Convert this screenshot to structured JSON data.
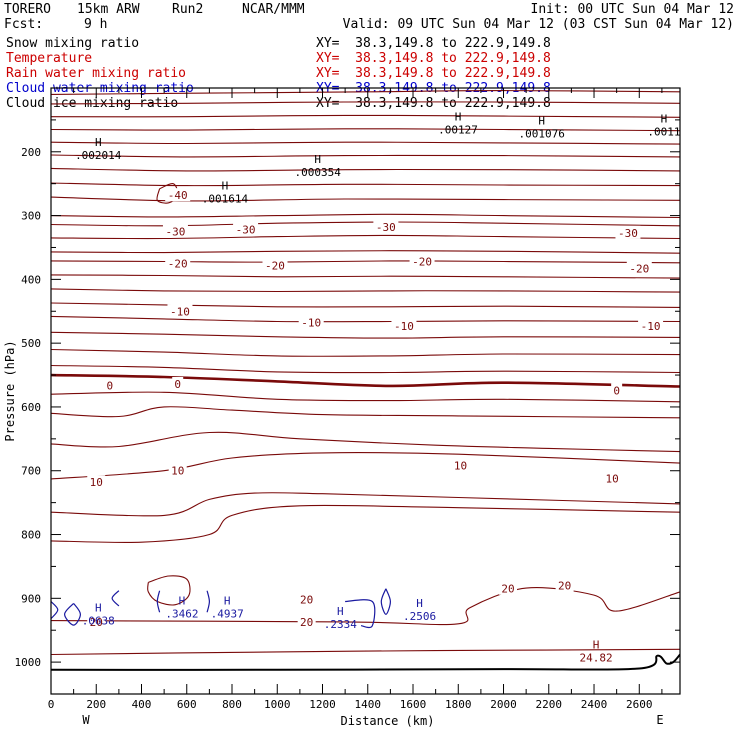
{
  "header": {
    "model": "TORERO",
    "resolution": "15km ARW",
    "run": "Run2",
    "org": "NCAR/MMM",
    "init": "Init: 00 UTC Sun 04 Mar 12",
    "fcst_label": "Fcst:",
    "fcst_value": "9 h",
    "valid": "Valid: 09 UTC Sun 04 Mar 12 (03 CST Sun 04 Mar 12)"
  },
  "fields": [
    {
      "name": "Snow mixing ratio",
      "xy": "XY=  38.3,149.8 to 222.9,149.8",
      "color": "#000000"
    },
    {
      "name": "Temperature",
      "xy": "XY=  38.3,149.8 to 222.9,149.8",
      "color": "#cc0000"
    },
    {
      "name": "Rain water mixing ratio",
      "xy": "XY=  38.3,149.8 to 222.9,149.8",
      "color": "#cc0000"
    },
    {
      "name": "Cloud water mixing ratio",
      "xy": "XY=  38.3,149.8 to 222.9,149.8",
      "color": "#0000cc"
    },
    {
      "name": "Cloud ice mixing ratio",
      "xy": "XY=  38.3,149.8 to 222.9,149.8",
      "color": "#000000"
    }
  ],
  "chart_data": {
    "type": "contour",
    "xlabel": "Distance (km)",
    "ylabel": "Pressure (hPa)",
    "xlim": [
      0,
      2780
    ],
    "ylim": [
      1050,
      100
    ],
    "x_ticks": [
      0,
      200,
      400,
      600,
      800,
      1000,
      1200,
      1400,
      1600,
      1800,
      2000,
      2200,
      2400,
      2600
    ],
    "y_ticks": [
      200,
      300,
      400,
      500,
      600,
      700,
      800,
      900,
      1000
    ],
    "x_end_labels": {
      "left": "W",
      "right": "E"
    },
    "colors": {
      "temperature": "#7a0a0a",
      "cloud_water": "#1a1aa0",
      "snow": "#000000",
      "terrain": "#000000"
    },
    "temperature_contours": [
      {
        "points": [
          [
            0,
            110
          ],
          [
            700,
            108
          ],
          [
            1400,
            106
          ],
          [
            2000,
            104
          ],
          [
            2780,
            106
          ]
        ]
      },
      {
        "points": [
          [
            0,
            125
          ],
          [
            600,
            124
          ],
          [
            1300,
            122
          ],
          [
            2000,
            122
          ],
          [
            2780,
            124
          ]
        ]
      },
      {
        "points": [
          [
            0,
            145
          ],
          [
            600,
            145
          ],
          [
            1300,
            143
          ],
          [
            2000,
            144
          ],
          [
            2780,
            146
          ]
        ]
      },
      {
        "points": [
          [
            0,
            165
          ],
          [
            600,
            166
          ],
          [
            1300,
            164
          ],
          [
            2000,
            165
          ],
          [
            2780,
            167
          ]
        ]
      },
      {
        "points": [
          [
            0,
            185
          ],
          [
            600,
            187
          ],
          [
            1300,
            185
          ],
          [
            2000,
            186
          ],
          [
            2780,
            188
          ]
        ]
      },
      {
        "points": [
          [
            0,
            205
          ],
          [
            600,
            208
          ],
          [
            1300,
            206
          ],
          [
            2000,
            206
          ],
          [
            2780,
            208
          ]
        ]
      },
      {
        "points": [
          [
            0,
            226
          ],
          [
            600,
            230
          ],
          [
            1300,
            228
          ],
          [
            2000,
            228
          ],
          [
            2780,
            230
          ]
        ]
      },
      {
        "points": [
          [
            0,
            249
          ],
          [
            600,
            253
          ],
          [
            1300,
            251
          ],
          [
            2000,
            252
          ],
          [
            2780,
            253
          ]
        ]
      },
      {
        "points": [
          [
            0,
            271
          ],
          [
            600,
            277
          ],
          [
            1300,
            274
          ],
          [
            2000,
            275
          ],
          [
            2780,
            276
          ]
        ]
      },
      {
        "points": [
          [
            0,
            300
          ],
          [
            500,
            302
          ],
          [
            1000,
            300
          ],
          [
            1500,
            298
          ],
          [
            2000,
            300
          ],
          [
            2780,
            303
          ]
        ]
      },
      {
        "points": [
          [
            0,
            314
          ],
          [
            500,
            316
          ],
          [
            1000,
            312
          ],
          [
            1500,
            310
          ],
          [
            2000,
            312
          ],
          [
            2780,
            316
          ]
        ]
      },
      {
        "points": [
          [
            0,
            335
          ],
          [
            500,
            336
          ],
          [
            1000,
            333
          ],
          [
            1500,
            331
          ],
          [
            2000,
            333
          ],
          [
            2780,
            336
          ]
        ]
      },
      {
        "points": [
          [
            0,
            357
          ],
          [
            500,
            358
          ],
          [
            1000,
            356
          ],
          [
            1500,
            355
          ],
          [
            2000,
            356
          ],
          [
            2780,
            359
          ]
        ]
      },
      {
        "points": [
          [
            0,
            371
          ],
          [
            500,
            372
          ],
          [
            1000,
            373
          ],
          [
            1500,
            371
          ],
          [
            2000,
            372
          ],
          [
            2780,
            374
          ]
        ]
      },
      {
        "points": [
          [
            0,
            393
          ],
          [
            500,
            394
          ],
          [
            1000,
            396
          ],
          [
            1500,
            395
          ],
          [
            2000,
            396
          ],
          [
            2780,
            398
          ]
        ]
      },
      {
        "points": [
          [
            0,
            415
          ],
          [
            500,
            418
          ],
          [
            1000,
            419
          ],
          [
            1500,
            418
          ],
          [
            2000,
            418
          ],
          [
            2780,
            420
          ]
        ]
      },
      {
        "points": [
          [
            0,
            437
          ],
          [
            500,
            440
          ],
          [
            1000,
            443
          ],
          [
            1500,
            443
          ],
          [
            2000,
            442
          ],
          [
            2780,
            444
          ]
        ]
      },
      {
        "points": [
          [
            0,
            458
          ],
          [
            500,
            462
          ],
          [
            1000,
            466
          ],
          [
            1500,
            466
          ],
          [
            2000,
            465
          ],
          [
            2780,
            466
          ]
        ]
      },
      {
        "points": [
          [
            0,
            483
          ],
          [
            500,
            486
          ],
          [
            1000,
            490
          ],
          [
            1500,
            492
          ],
          [
            2000,
            490
          ],
          [
            2780,
            491
          ]
        ]
      },
      {
        "points": [
          [
            0,
            510
          ],
          [
            500,
            514
          ],
          [
            1000,
            520
          ],
          [
            1500,
            520
          ],
          [
            2000,
            517
          ],
          [
            2780,
            518
          ]
        ]
      },
      {
        "points": [
          [
            0,
            535
          ],
          [
            500,
            538
          ],
          [
            1000,
            545
          ],
          [
            1500,
            546
          ],
          [
            2000,
            544
          ],
          [
            2780,
            546
          ]
        ]
      },
      {
        "points": [
          [
            0,
            550
          ],
          [
            500,
            553
          ],
          [
            1000,
            560
          ],
          [
            1500,
            567
          ],
          [
            2000,
            562
          ],
          [
            2780,
            568
          ]
        ],
        "label": "0",
        "bold": true
      },
      {
        "points": [
          [
            0,
            580
          ],
          [
            500,
            577
          ],
          [
            1000,
            588
          ],
          [
            1500,
            590
          ],
          [
            2000,
            588
          ],
          [
            2780,
            592
          ]
        ]
      },
      {
        "points": [
          [
            0,
            610
          ],
          [
            300,
            615
          ],
          [
            500,
            600
          ],
          [
            800,
            605
          ],
          [
            1200,
            612
          ],
          [
            1800,
            614
          ],
          [
            2780,
            617
          ]
        ]
      },
      {
        "points": [
          [
            0,
            658
          ],
          [
            300,
            662
          ],
          [
            700,
            640
          ],
          [
            1100,
            650
          ],
          [
            1700,
            660
          ],
          [
            2200,
            665
          ],
          [
            2780,
            670
          ]
        ]
      },
      {
        "points": [
          [
            0,
            713
          ],
          [
            500,
            700
          ],
          [
            800,
            680
          ],
          [
            1200,
            672
          ],
          [
            1800,
            674
          ],
          [
            2780,
            688
          ]
        ]
      },
      {
        "points": [
          [
            0,
            765
          ],
          [
            500,
            770
          ],
          [
            700,
            745
          ],
          [
            900,
            735
          ],
          [
            1200,
            736
          ],
          [
            1800,
            742
          ],
          [
            2780,
            752
          ]
        ]
      },
      {
        "points": [
          [
            0,
            810
          ],
          [
            400,
            812
          ],
          [
            700,
            800
          ],
          [
            800,
            770
          ],
          [
            1100,
            755
          ],
          [
            1800,
            758
          ],
          [
            2780,
            765
          ]
        ]
      },
      {
        "points": [
          [
            0,
            935
          ],
          [
            1300,
            937
          ],
          [
            1800,
            940
          ],
          [
            1850,
            915
          ],
          [
            2100,
            884
          ],
          [
            2400,
            895
          ],
          [
            2500,
            920
          ],
          [
            2780,
            890
          ]
        ]
      },
      {
        "points": [
          [
            0,
            988
          ],
          [
            1000,
            984
          ],
          [
            1700,
            982
          ],
          [
            2780,
            980
          ]
        ]
      }
    ],
    "temperature_labels": [
      {
        "x": 560,
        "y": 268,
        "text": "-40"
      },
      {
        "x": 550,
        "y": 325,
        "text": "-30"
      },
      {
        "x": 860,
        "y": 322,
        "text": "-30"
      },
      {
        "x": 1480,
        "y": 318,
        "text": "-30"
      },
      {
        "x": 2550,
        "y": 327,
        "text": "-30"
      },
      {
        "x": 560,
        "y": 375,
        "text": "-20"
      },
      {
        "x": 990,
        "y": 378,
        "text": "-20"
      },
      {
        "x": 1640,
        "y": 372,
        "text": "-20"
      },
      {
        "x": 2600,
        "y": 383,
        "text": "-20"
      },
      {
        "x": 570,
        "y": 450,
        "text": "-10"
      },
      {
        "x": 1150,
        "y": 468,
        "text": "-10"
      },
      {
        "x": 1560,
        "y": 473,
        "text": "-10"
      },
      {
        "x": 2650,
        "y": 473,
        "text": "-10"
      },
      {
        "x": 260,
        "y": 566,
        "text": "0"
      },
      {
        "x": 560,
        "y": 564,
        "text": "0"
      },
      {
        "x": 2500,
        "y": 574,
        "text": "0"
      },
      {
        "x": 200,
        "y": 718,
        "text": "10"
      },
      {
        "x": 560,
        "y": 700,
        "text": "10"
      },
      {
        "x": 1810,
        "y": 692,
        "text": "10"
      },
      {
        "x": 2480,
        "y": 712,
        "text": "10"
      },
      {
        "x": 1130,
        "y": 902,
        "text": "20"
      },
      {
        "x": 1130,
        "y": 937,
        "text": "20"
      },
      {
        "x": 2020,
        "y": 885,
        "text": "20"
      },
      {
        "x": 2270,
        "y": 880,
        "text": "20"
      },
      {
        "x": 200,
        "y": 937,
        "text": "20"
      }
    ],
    "cloud_water_maxima": [
      {
        "x": 200,
        "y": 924,
        "text": ".0638"
      },
      {
        "x": 570,
        "y": 913,
        "text": ".3462"
      },
      {
        "x": 770,
        "y": 913,
        "text": ".4937"
      },
      {
        "x": 1270,
        "y": 929,
        "text": ".2334"
      },
      {
        "x": 1620,
        "y": 917,
        "text": ".2506"
      }
    ],
    "snow_maxima": [
      {
        "x": 200,
        "y": 194,
        "text": ".002014"
      },
      {
        "x": 760,
        "y": 262,
        "text": ".001614"
      },
      {
        "x": 1170,
        "y": 221,
        "text": ".000354"
      },
      {
        "x": 1790,
        "y": 154,
        "text": ".00127"
      },
      {
        "x": 2160,
        "y": 160,
        "text": ".001076"
      },
      {
        "x": 2700,
        "y": 157,
        "text": ".0011"
      }
    ],
    "rain_maxima": [
      {
        "x": 2400,
        "y": 982,
        "text": "24.82"
      }
    ],
    "cloud_water_outlines": [
      {
        "points": [
          [
            0,
            905
          ],
          [
            30,
            918
          ],
          [
            0,
            932
          ]
        ]
      },
      {
        "points": [
          [
            100,
            908
          ],
          [
            60,
            925
          ],
          [
            100,
            942
          ],
          [
            130,
            925
          ],
          [
            100,
            908
          ]
        ]
      },
      {
        "points": [
          [
            300,
            888
          ],
          [
            270,
            900
          ],
          [
            300,
            912
          ]
        ]
      },
      {
        "points": [
          [
            480,
            888
          ],
          [
            470,
            905
          ],
          [
            480,
            922
          ]
        ]
      },
      {
        "points": [
          [
            690,
            888
          ],
          [
            700,
            905
          ],
          [
            690,
            922
          ]
        ]
      },
      {
        "points": [
          [
            1300,
            905
          ],
          [
            1420,
            905
          ],
          [
            1420,
            943
          ],
          [
            1370,
            943
          ]
        ]
      },
      {
        "points": [
          [
            1480,
            885
          ],
          [
            1460,
            905
          ],
          [
            1480,
            925
          ],
          [
            1500,
            905
          ],
          [
            1480,
            885
          ]
        ]
      }
    ],
    "closed_temp_loops": [
      {
        "points": [
          [
            430,
            875
          ],
          [
            520,
            865
          ],
          [
            600,
            870
          ],
          [
            610,
            895
          ],
          [
            550,
            910
          ],
          [
            470,
            905
          ],
          [
            430,
            890
          ],
          [
            430,
            875
          ]
        ]
      },
      {
        "points": [
          [
            480,
            258
          ],
          [
            540,
            250
          ],
          [
            560,
            268
          ],
          [
            520,
            280
          ],
          [
            470,
            276
          ],
          [
            480,
            258
          ]
        ]
      }
    ],
    "terrain": {
      "points": [
        [
          0,
          1012
        ],
        [
          1000,
          1012
        ],
        [
          2000,
          1011
        ],
        [
          2600,
          1010
        ],
        [
          2680,
          990
        ],
        [
          2720,
          1002
        ],
        [
          2750,
          1000
        ],
        [
          2780,
          988
        ]
      ]
    }
  }
}
